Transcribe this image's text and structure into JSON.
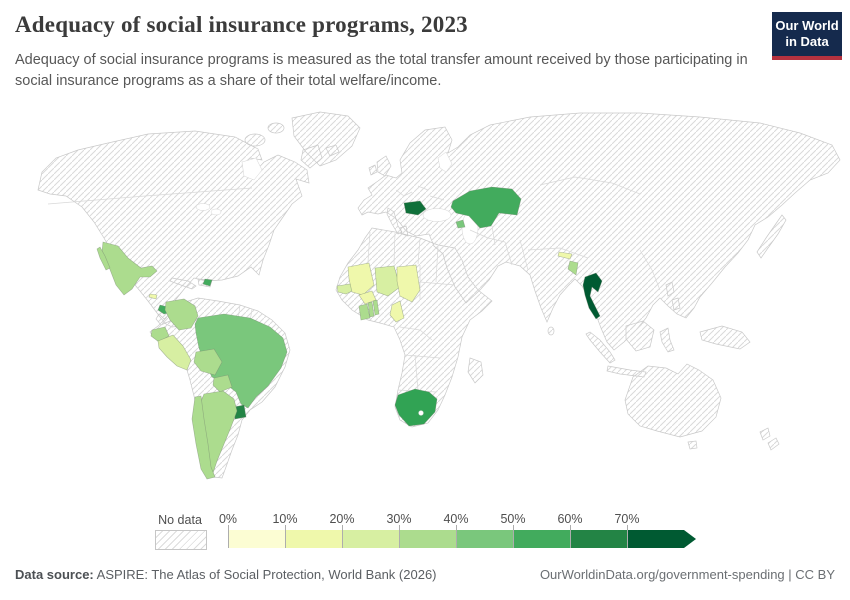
{
  "header": {
    "title": "Adequacy of social insurance programs, 2023",
    "subtitle": "Adequacy of social insurance programs is measured as the total transfer amount received by those participating in social insurance programs as a share of their total welfare/income.",
    "logo": {
      "line1": "Our World",
      "line2": "in Data",
      "bg_color": "#152a4d",
      "accent_color": "#b5323f"
    }
  },
  "legend": {
    "no_data_label": "No data",
    "tick_labels": [
      "0%",
      "10%",
      "20%",
      "30%",
      "40%",
      "50%",
      "60%",
      "70%"
    ],
    "buckets": [
      {
        "range": "0-10%",
        "color": "#fcfdd3"
      },
      {
        "range": "10-20%",
        "color": "#eff8ab"
      },
      {
        "range": "20-30%",
        "color": "#d7efa2"
      },
      {
        "range": "30-40%",
        "color": "#acdc8e"
      },
      {
        "range": "40-50%",
        "color": "#7ac77c"
      },
      {
        "range": "50-60%",
        "color": "#42ab5d"
      },
      {
        "range": "60-70%",
        "color": "#238445"
      },
      {
        "range": "70%+",
        "color": "#005a32"
      }
    ]
  },
  "map": {
    "hatch_line_color": "#d9d9d9",
    "landmass_stroke": "#c9c9c9",
    "no_data_note": "Hatched regions (USA, Canada, Russia, China, India, Australia, most of Europe, Middle East and central/eastern Africa) have no data."
  },
  "footer": {
    "source_label": "Data source:",
    "source_text": " ASPIRE: The Atlas of Social Protection, World Bank (2026)",
    "rights": "OurWorldinData.org/government-spending | CC BY"
  },
  "chart_data": {
    "type": "heatmap",
    "subtype": "choropleth-world-map",
    "title": "Adequacy of social insurance programs, 2023",
    "unit": "% of total welfare/income",
    "legend_position": "bottom",
    "buckets": [
      "0-10%",
      "10-20%",
      "20-30%",
      "30-40%",
      "40-50%",
      "50-60%",
      "60-70%",
      "70%+",
      "No data"
    ],
    "countries": [
      {
        "name": "Mexico",
        "bucket": "30-40%",
        "color": "#acdc8e"
      },
      {
        "name": "El Salvador",
        "bucket": "10-20%",
        "color": "#eff8ab"
      },
      {
        "name": "Costa Rica",
        "bucket": "50-60%",
        "color": "#42ab5d"
      },
      {
        "name": "Panama",
        "bucket": "30-40%",
        "color": "#acdc8e"
      },
      {
        "name": "Dominican Republic",
        "bucket": "50-60%",
        "color": "#42ab5d"
      },
      {
        "name": "Colombia",
        "bucket": "30-40%",
        "color": "#acdc8e"
      },
      {
        "name": "Ecuador",
        "bucket": "30-40%",
        "color": "#acdc8e"
      },
      {
        "name": "Peru",
        "bucket": "20-30%",
        "color": "#d7efa2"
      },
      {
        "name": "Brazil",
        "bucket": "40-50%",
        "color": "#7ac77c"
      },
      {
        "name": "Bolivia",
        "bucket": "30-40%",
        "color": "#acdc8e"
      },
      {
        "name": "Paraguay",
        "bucket": "30-40%",
        "color": "#acdc8e"
      },
      {
        "name": "Chile",
        "bucket": "30-40%",
        "color": "#acdc8e"
      },
      {
        "name": "Argentina",
        "bucket": "30-40%",
        "color": "#acdc8e"
      },
      {
        "name": "Uruguay",
        "bucket": "60-70%",
        "color": "#238445"
      },
      {
        "name": "Senegal",
        "bucket": "20-30%",
        "color": "#d7efa2"
      },
      {
        "name": "Mali",
        "bucket": "10-20%",
        "color": "#eff8ab"
      },
      {
        "name": "Burkina Faso",
        "bucket": "10-20%",
        "color": "#eff8ab"
      },
      {
        "name": "Ghana",
        "bucket": "30-40%",
        "color": "#acdc8e"
      },
      {
        "name": "Togo",
        "bucket": "30-40%",
        "color": "#acdc8e"
      },
      {
        "name": "Benin",
        "bucket": "30-40%",
        "color": "#acdc8e"
      },
      {
        "name": "Niger",
        "bucket": "20-30%",
        "color": "#d7efa2"
      },
      {
        "name": "Chad",
        "bucket": "10-20%",
        "color": "#eff8ab"
      },
      {
        "name": "Cameroon",
        "bucket": "10-20%",
        "color": "#eff8ab"
      },
      {
        "name": "South Africa",
        "bucket": "50-60%",
        "color": "#31a354"
      },
      {
        "name": "Romania",
        "bucket": "60-70%",
        "color": "#10703a"
      },
      {
        "name": "Kazakhstan",
        "bucket": "50-60%",
        "color": "#42ab5d"
      },
      {
        "name": "Armenia",
        "bucket": "40-50%",
        "color": "#7ac77c"
      },
      {
        "name": "Nepal",
        "bucket": "10-20%",
        "color": "#eff8ab"
      },
      {
        "name": "Bangladesh",
        "bucket": "30-40%",
        "color": "#acdc8e"
      },
      {
        "name": "Thailand",
        "bucket": "70%+",
        "color": "#005a32"
      }
    ]
  }
}
